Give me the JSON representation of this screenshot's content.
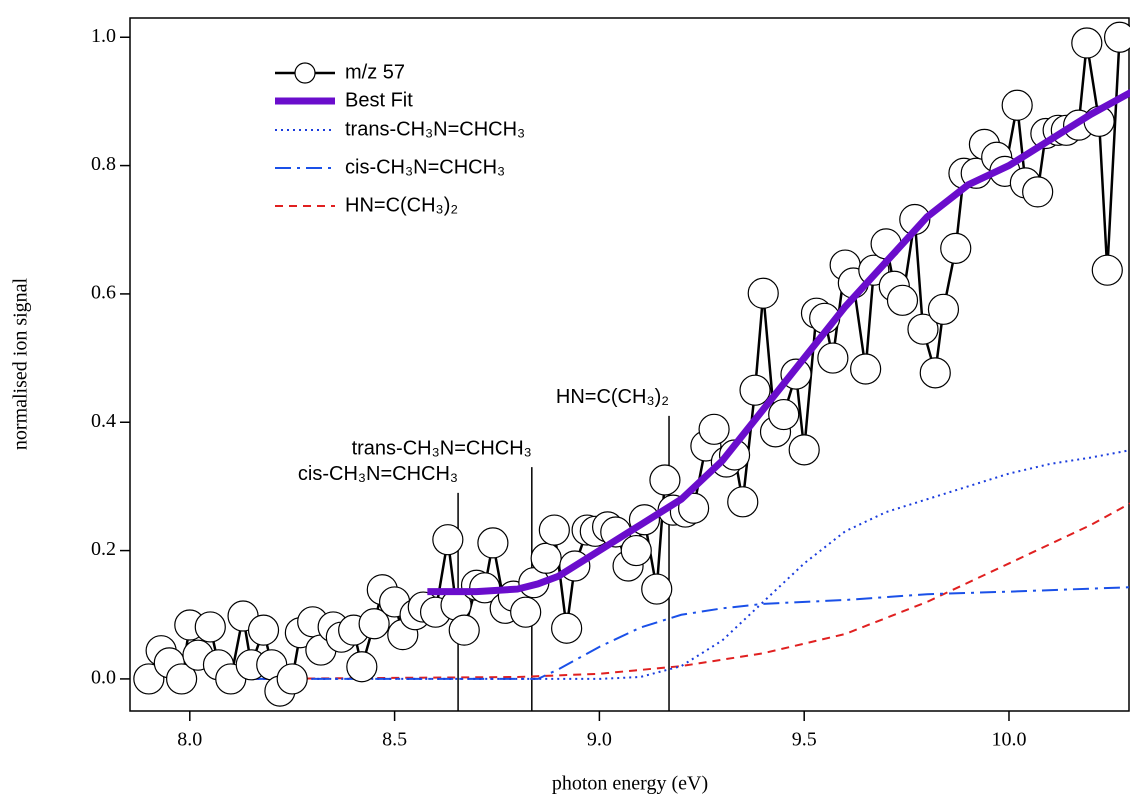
{
  "chart_data": {
    "type": "line",
    "xlabel": "photon energy (eV)",
    "ylabel": "normalised ion signal",
    "xlim": [
      7.854,
      10.293
    ],
    "ylim": [
      -0.05,
      1.03
    ],
    "xticks": [
      {
        "value": 8,
        "label": "8.0"
      },
      8.5,
      {
        "value": 9,
        "label": "9.0"
      },
      9.5,
      {
        "value": 10,
        "label": "10.0"
      }
    ],
    "yticks": [
      {
        "value": 0,
        "label": "0.0"
      },
      0.2,
      0.4,
      0.6,
      0.8,
      {
        "value": 1,
        "label": "1.0"
      }
    ],
    "legend": "upper left",
    "series": [
      {
        "name": "m/z 57",
        "color": "#000000",
        "style": "line-circles",
        "x": [
          7.9,
          7.93,
          7.95,
          7.98,
          8.0,
          8.02,
          8.05,
          8.07,
          8.1,
          8.13,
          8.15,
          8.18,
          8.2,
          8.22,
          8.25,
          8.27,
          8.3,
          8.32,
          8.35,
          8.37,
          8.4,
          8.42,
          8.45,
          8.47,
          8.5,
          8.52,
          8.55,
          8.57,
          8.6,
          8.63,
          8.65,
          8.67,
          8.7,
          8.72,
          8.74,
          8.77,
          8.79,
          8.82,
          8.84,
          8.87,
          8.89,
          8.92,
          8.94,
          8.97,
          8.99,
          9.02,
          9.04,
          9.07,
          9.09,
          9.11,
          9.14,
          9.16,
          9.18,
          9.21,
          9.23,
          9.26,
          9.28,
          9.31,
          9.33,
          9.35,
          9.38,
          9.4,
          9.43,
          9.45,
          9.48,
          9.5,
          9.53,
          9.55,
          9.57,
          9.6,
          9.62,
          9.65,
          9.67,
          9.7,
          9.72,
          9.74,
          9.77,
          9.79,
          9.82,
          9.84,
          9.87,
          9.89,
          9.92,
          9.94,
          9.97,
          9.99,
          10.02,
          10.04,
          10.07,
          10.09,
          10.12,
          10.14,
          10.17,
          10.19,
          10.22,
          10.24,
          10.27
        ],
        "values": [
          0.0,
          0.044,
          0.025,
          0.0,
          0.084,
          0.037,
          0.081,
          0.022,
          0.0,
          0.098,
          0.022,
          0.076,
          0.022,
          -0.019,
          0.0,
          0.072,
          0.089,
          0.045,
          0.081,
          0.065,
          0.076,
          0.019,
          0.086,
          0.139,
          0.12,
          0.069,
          0.1,
          0.112,
          0.104,
          0.217,
          0.115,
          0.076,
          0.146,
          0.142,
          0.212,
          0.11,
          0.129,
          0.104,
          0.15,
          0.188,
          0.232,
          0.079,
          0.176,
          0.232,
          0.23,
          0.237,
          0.229,
          0.176,
          0.2,
          0.248,
          0.14,
          0.31,
          0.263,
          0.26,
          0.266,
          0.363,
          0.389,
          0.338,
          0.349,
          0.276,
          0.45,
          0.601,
          0.385,
          0.412,
          0.475,
          0.357,
          0.57,
          0.562,
          0.5,
          0.645,
          0.617,
          0.483,
          0.637,
          0.678,
          0.612,
          0.59,
          0.716,
          0.545,
          0.477,
          0.576,
          0.671,
          0.788,
          0.788,
          0.833,
          0.813,
          0.791,
          0.894,
          0.773,
          0.759,
          0.85,
          0.855,
          0.855,
          0.863,
          0.991,
          0.869,
          0.637,
          1.0
        ]
      },
      {
        "name": "Best Fit",
        "color": "#6a0dcc",
        "style": "thick",
        "x": [
          8.58,
          8.7,
          8.8,
          8.85,
          8.9,
          9.0,
          9.1,
          9.2,
          9.3,
          9.4,
          9.5,
          9.6,
          9.7,
          9.8,
          9.9,
          10.0,
          10.1,
          10.2,
          10.3
        ],
        "values": [
          0.136,
          0.136,
          0.14,
          0.148,
          0.16,
          0.2,
          0.24,
          0.28,
          0.34,
          0.42,
          0.5,
          0.58,
          0.65,
          0.72,
          0.77,
          0.8,
          0.84,
          0.88,
          0.915
        ]
      },
      {
        "name": "trans-CH₃N=CHCH₃",
        "color": "#1a3cdd",
        "style": "dotted",
        "x": [
          8.15,
          8.8,
          9.0,
          9.1,
          9.2,
          9.3,
          9.4,
          9.5,
          9.6,
          9.7,
          9.8,
          9.9,
          10.0,
          10.1,
          10.2,
          10.3
        ],
        "values": [
          0,
          0,
          0,
          0.003,
          0.02,
          0.06,
          0.12,
          0.18,
          0.23,
          0.26,
          0.28,
          0.3,
          0.32,
          0.335,
          0.345,
          0.357
        ]
      },
      {
        "name": "cis-CH₃N=CHCH₃",
        "color": "#1a50e8",
        "style": "dashdot",
        "x": [
          8.15,
          8.85,
          8.9,
          9.0,
          9.1,
          9.2,
          9.3,
          9.4,
          9.6,
          9.8,
          10.0,
          10.3
        ],
        "values": [
          0,
          0,
          0.015,
          0.05,
          0.08,
          0.1,
          0.11,
          0.117,
          0.123,
          0.132,
          0.136,
          0.143
        ]
      },
      {
        "name": "HN=C(CH₃)₂",
        "color": "#e02020",
        "style": "dashed",
        "x": [
          8.15,
          8.8,
          9.0,
          9.2,
          9.4,
          9.6,
          9.8,
          10.0,
          10.2,
          10.3
        ],
        "values": [
          0,
          0.003,
          0.008,
          0.02,
          0.04,
          0.07,
          0.12,
          0.18,
          0.24,
          0.275
        ]
      }
    ],
    "annotations": [
      {
        "label": "cis-CH₃N=CHCH₃",
        "x": 8.655,
        "y": 0.29
      },
      {
        "label": "trans-CH₃N=CHCH₃",
        "x": 8.835,
        "y": 0.33
      },
      {
        "label": "HN=C(CH₃)₂",
        "x": 9.17,
        "y": 0.41
      }
    ]
  }
}
